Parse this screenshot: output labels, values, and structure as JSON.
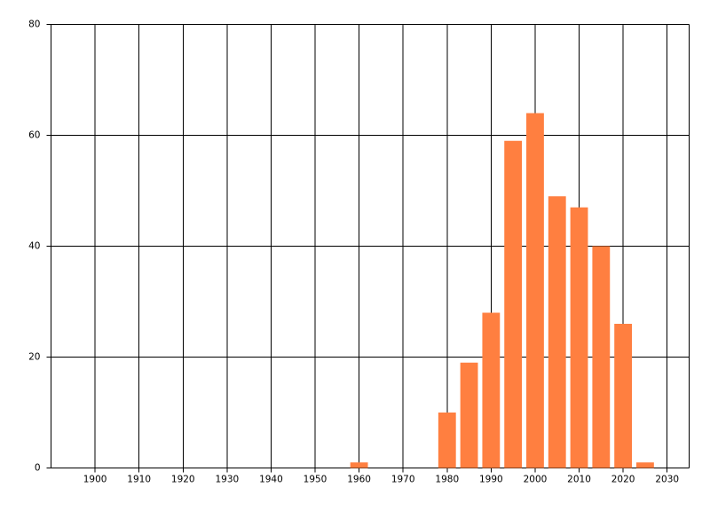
{
  "chart_data": {
    "type": "bar",
    "x": [
      1960,
      1980,
      1985,
      1990,
      1995,
      2000,
      2005,
      2010,
      2015,
      2020,
      2025
    ],
    "values": [
      1,
      10,
      19,
      28,
      59,
      64,
      49,
      47,
      40,
      26,
      1
    ],
    "color": "#ff7f40",
    "xlim": [
      1890,
      2035
    ],
    "xticks": [
      1900,
      1910,
      1920,
      1930,
      1940,
      1950,
      1960,
      1970,
      1980,
      1990,
      2000,
      2010,
      2020,
      2030
    ],
    "ylim": [
      0,
      80
    ],
    "yticks": [
      0,
      20,
      40,
      60,
      80
    ],
    "grid": true
  }
}
